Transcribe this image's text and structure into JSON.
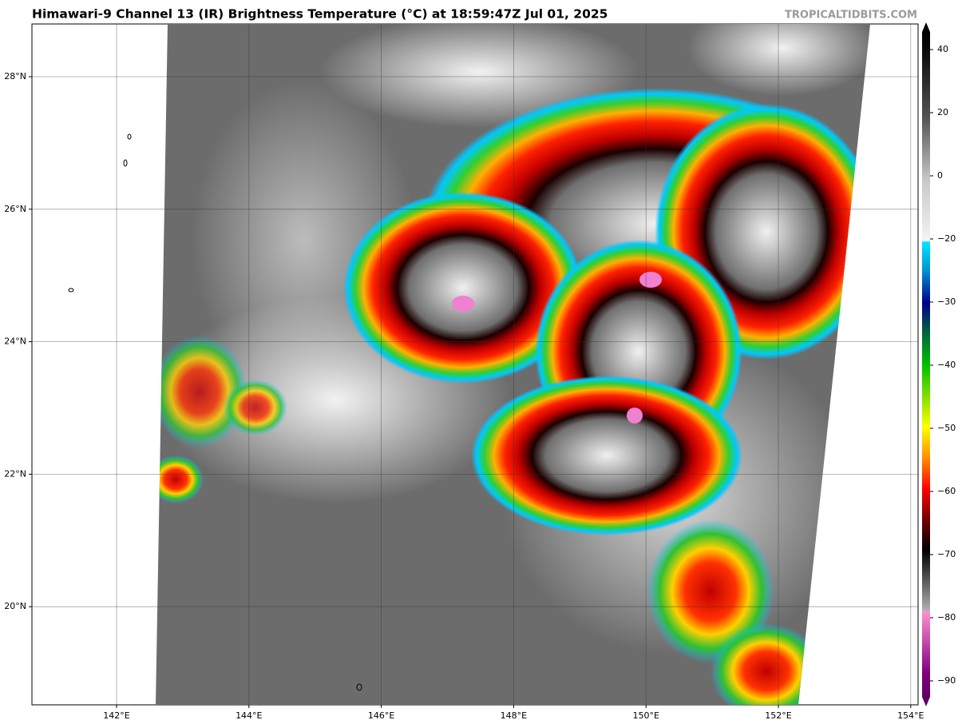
{
  "header": {
    "title": "Himawari-9 Channel 13 (IR) Brightness Temperature (°C) at 18:59:47Z Jul 01, 2025",
    "watermark": "TROPICALTIDBITS.COM"
  },
  "map": {
    "latitude_labels": [
      "28°N",
      "26°N",
      "24°N",
      "22°N",
      "20°N"
    ],
    "longitude_labels": [
      "142°E",
      "144°E",
      "146°E",
      "148°E",
      "150°E",
      "152°E",
      "154°E"
    ]
  },
  "colorbar": {
    "labels": [
      "40",
      "20",
      "0",
      "−20",
      "−30",
      "−40",
      "−50",
      "−60",
      "−70",
      "−80",
      "−90"
    ]
  }
}
